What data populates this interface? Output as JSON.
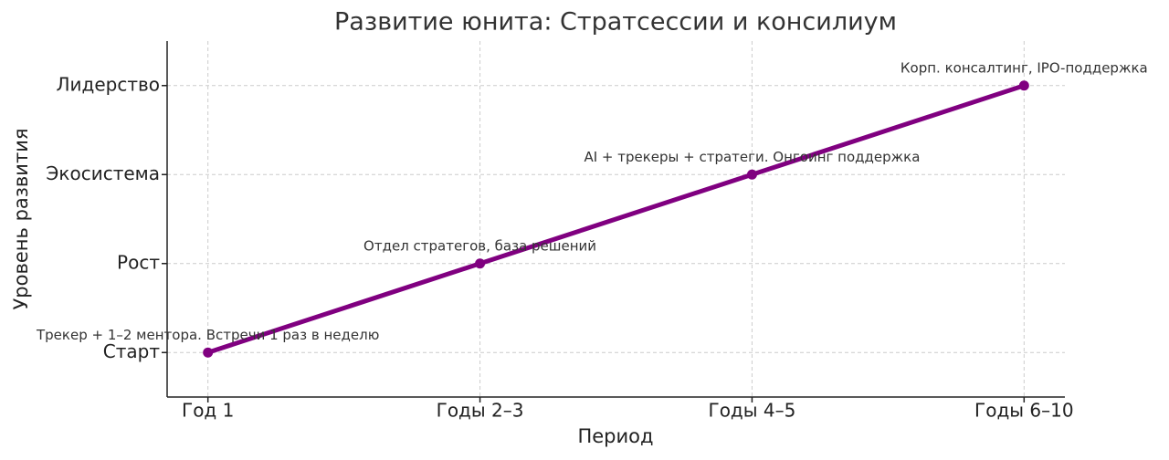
{
  "chart_data": {
    "type": "line",
    "title": "Развитие юнита: Стратсессии и консилиум",
    "x_label": "Период",
    "y_label": "Уровень развития",
    "categories": [
      "Год 1",
      "Годы 2–3",
      "Годы 4–5",
      "Годы 6–10"
    ],
    "series": [
      {
        "name": "Уровень",
        "color": "#800080",
        "values": [
          0,
          1,
          2,
          3
        ]
      }
    ],
    "annotations": [
      "Трекер + 1–2 ментора. Встречи 1 раз в неделю",
      "Отдел стратегов, база решений",
      "AI + трекеры + стратеги. Онгоинг поддержка",
      "Корп. консалтинг, IPO-поддержка"
    ],
    "ylim": [
      -0.5,
      3.5
    ],
    "yticks": [
      {
        "value": 0,
        "label": "Старт"
      },
      {
        "value": 1,
        "label": "Рост"
      },
      {
        "value": 2,
        "label": "Экосистема"
      },
      {
        "value": 3,
        "label": "Лидерство"
      }
    ],
    "grid": true
  }
}
